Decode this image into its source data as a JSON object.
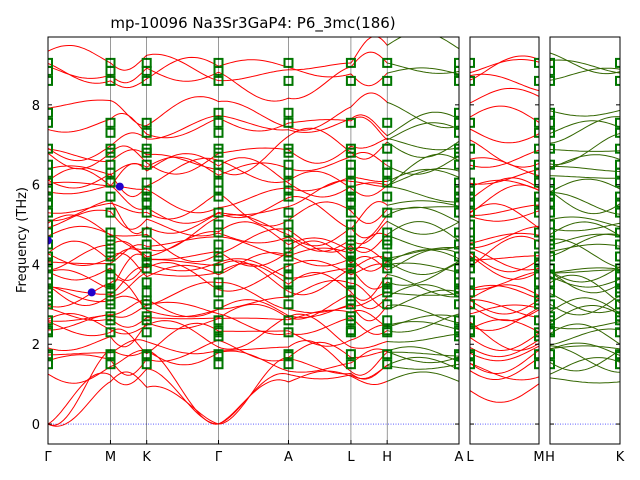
{
  "chart_data": {
    "type": "line",
    "title": "mp-10096   Na3Sr3GaP4: P6_3mc(186)",
    "ylabel": "Frequency (THz)",
    "ylim": [
      -0.5,
      9.7
    ],
    "y_ticks": [
      0,
      2,
      4,
      6,
      8
    ],
    "zero_line": true,
    "colors": {
      "band": "#ff0000",
      "band_alt": "#336600",
      "marker": "#007700",
      "dot": "#2200cc",
      "zero_line": "#0000ff",
      "axis": "#000000"
    },
    "panels": [
      {
        "labels": [
          "Γ",
          "M",
          "K",
          "Γ",
          "A",
          "L",
          "H",
          "A"
        ],
        "segment_lengths": [
          1.0,
          0.58,
          1.15,
          1.12,
          1.0,
          0.58,
          1.15
        ],
        "colored_segments": [
          6
        ]
      },
      {
        "labels": [
          "L",
          "M"
        ],
        "segment_lengths": [
          1.0
        ],
        "colored_segments": []
      },
      {
        "labels": [
          "H",
          "K"
        ],
        "segment_lengths": [
          1.0
        ],
        "colored_segments": [
          0
        ]
      }
    ],
    "gamma_bands": [
      0,
      0,
      0,
      1.5,
      1.7,
      1.75,
      2.2,
      2.3,
      2.35,
      2.6,
      2.7,
      3.0,
      3.1,
      3.3,
      3.4,
      3.55,
      3.75,
      3.9,
      4.05,
      4.2,
      4.3,
      4.5,
      4.6,
      4.8,
      5.0,
      5.3,
      5.55,
      5.7,
      5.85,
      6.05,
      6.3,
      6.5,
      6.8,
      6.9,
      7.3,
      7.55,
      7.8,
      8.6,
      8.85,
      9.05
    ],
    "highlighted_points": [
      {
        "panel": 0,
        "x": 0.0,
        "y": 4.6
      },
      {
        "panel": 0,
        "x": 1.15,
        "y": 5.95
      },
      {
        "panel": 0,
        "x": 0.7,
        "y": 3.3
      }
    ]
  }
}
